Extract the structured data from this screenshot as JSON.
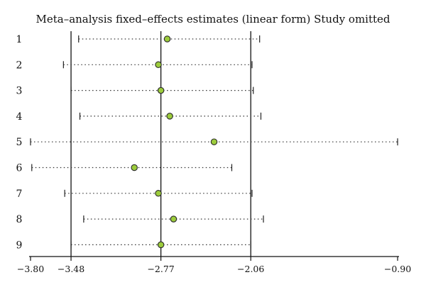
{
  "chart_data": {
    "type": "forest",
    "title": "Meta–analysis fixed–effects estimates (linear form) Study omitted",
    "xlim": [
      -3.8,
      -0.9
    ],
    "ticks": [
      {
        "value": -3.8,
        "label": "−3.80"
      },
      {
        "value": -3.48,
        "label": "−3.48"
      },
      {
        "value": -2.77,
        "label": "−2.77"
      },
      {
        "value": -2.06,
        "label": "−2.06"
      },
      {
        "value": -0.9,
        "label": "−0.90"
      }
    ],
    "reference_lines": [
      -3.48,
      -2.77,
      -2.06
    ],
    "studies": [
      {
        "label": "1",
        "estimate": -2.72,
        "lower": -3.42,
        "upper": -1.99
      },
      {
        "label": "2",
        "estimate": -2.79,
        "lower": -3.54,
        "upper": -2.05
      },
      {
        "label": "3",
        "estimate": -2.77,
        "lower": -3.48,
        "upper": -2.04
      },
      {
        "label": "4",
        "estimate": -2.7,
        "lower": -3.41,
        "upper": -1.98
      },
      {
        "label": "5",
        "estimate": -2.35,
        "lower": -3.8,
        "upper": -0.9
      },
      {
        "label": "6",
        "estimate": -2.98,
        "lower": -3.79,
        "upper": -2.21
      },
      {
        "label": "7",
        "estimate": -2.79,
        "lower": -3.53,
        "upper": -2.05
      },
      {
        "label": "8",
        "estimate": -2.67,
        "lower": -3.38,
        "upper": -1.96
      },
      {
        "label": "9",
        "estimate": -2.77,
        "lower": -3.48,
        "upper": -2.06
      }
    ]
  }
}
